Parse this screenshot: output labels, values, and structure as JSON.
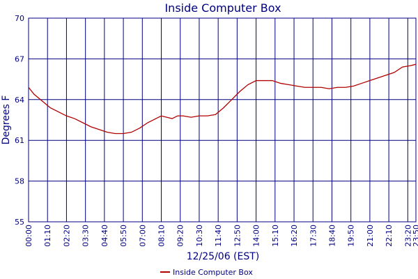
{
  "chart_data": {
    "type": "line",
    "title": "Inside Computer Box",
    "x_label": "12/25/06 (EST)",
    "y_label": "Degrees F",
    "x": [
      0,
      20,
      50,
      80,
      110,
      140,
      170,
      200,
      230,
      260,
      290,
      320,
      350,
      380,
      410,
      440,
      470,
      490,
      510,
      530,
      550,
      570,
      600,
      630,
      660,
      690,
      720,
      750,
      780,
      810,
      840,
      870,
      900,
      930,
      960,
      990,
      1020,
      1050,
      1080,
      1110,
      1140,
      1170,
      1200,
      1230,
      1260,
      1290,
      1320,
      1350,
      1380,
      1410,
      1430
    ],
    "series": [
      {
        "name": "Inside Computer Box",
        "color": "#b00000",
        "values": [
          64.9,
          64.4,
          63.9,
          63.4,
          63.1,
          62.8,
          62.6,
          62.3,
          62.0,
          61.8,
          61.6,
          61.5,
          61.5,
          61.6,
          61.9,
          62.3,
          62.6,
          62.8,
          62.7,
          62.6,
          62.8,
          62.8,
          62.7,
          62.8,
          62.8,
          62.9,
          63.4,
          64.0,
          64.6,
          65.1,
          65.4,
          65.4,
          65.4,
          65.2,
          65.1,
          65.0,
          64.9,
          64.9,
          64.9,
          64.8,
          64.9,
          64.9,
          65.0,
          65.2,
          65.4,
          65.6,
          65.8,
          66.0,
          66.4,
          66.5,
          66.6
        ]
      }
    ],
    "xlim": [
      0,
      1430
    ],
    "xticks": [
      {
        "value": 0,
        "label": "00:00"
      },
      {
        "value": 70,
        "label": "01:10"
      },
      {
        "value": 140,
        "label": "02:20"
      },
      {
        "value": 210,
        "label": "03:30"
      },
      {
        "value": 280,
        "label": "04:40"
      },
      {
        "value": 350,
        "label": "05:50"
      },
      {
        "value": 420,
        "label": "07:00"
      },
      {
        "value": 490,
        "label": "08:10"
      },
      {
        "value": 560,
        "label": "09:20"
      },
      {
        "value": 630,
        "label": "10:30"
      },
      {
        "value": 700,
        "label": "11:40"
      },
      {
        "value": 770,
        "label": "12:50"
      },
      {
        "value": 840,
        "label": "14:00"
      },
      {
        "value": 910,
        "label": "15:10"
      },
      {
        "value": 980,
        "label": "16:20"
      },
      {
        "value": 1050,
        "label": "17:30"
      },
      {
        "value": 1120,
        "label": "18:40"
      },
      {
        "value": 1190,
        "label": "19:50"
      },
      {
        "value": 1260,
        "label": "21:00"
      },
      {
        "value": 1330,
        "label": "22:10"
      },
      {
        "value": 1400,
        "label": "23:20"
      },
      {
        "value": 1430,
        "label": "23:50"
      }
    ],
    "ylim": [
      55,
      70
    ],
    "yticks": [
      55,
      58,
      61,
      64,
      67,
      70
    ],
    "grid": true,
    "grid_color": "#000080"
  }
}
